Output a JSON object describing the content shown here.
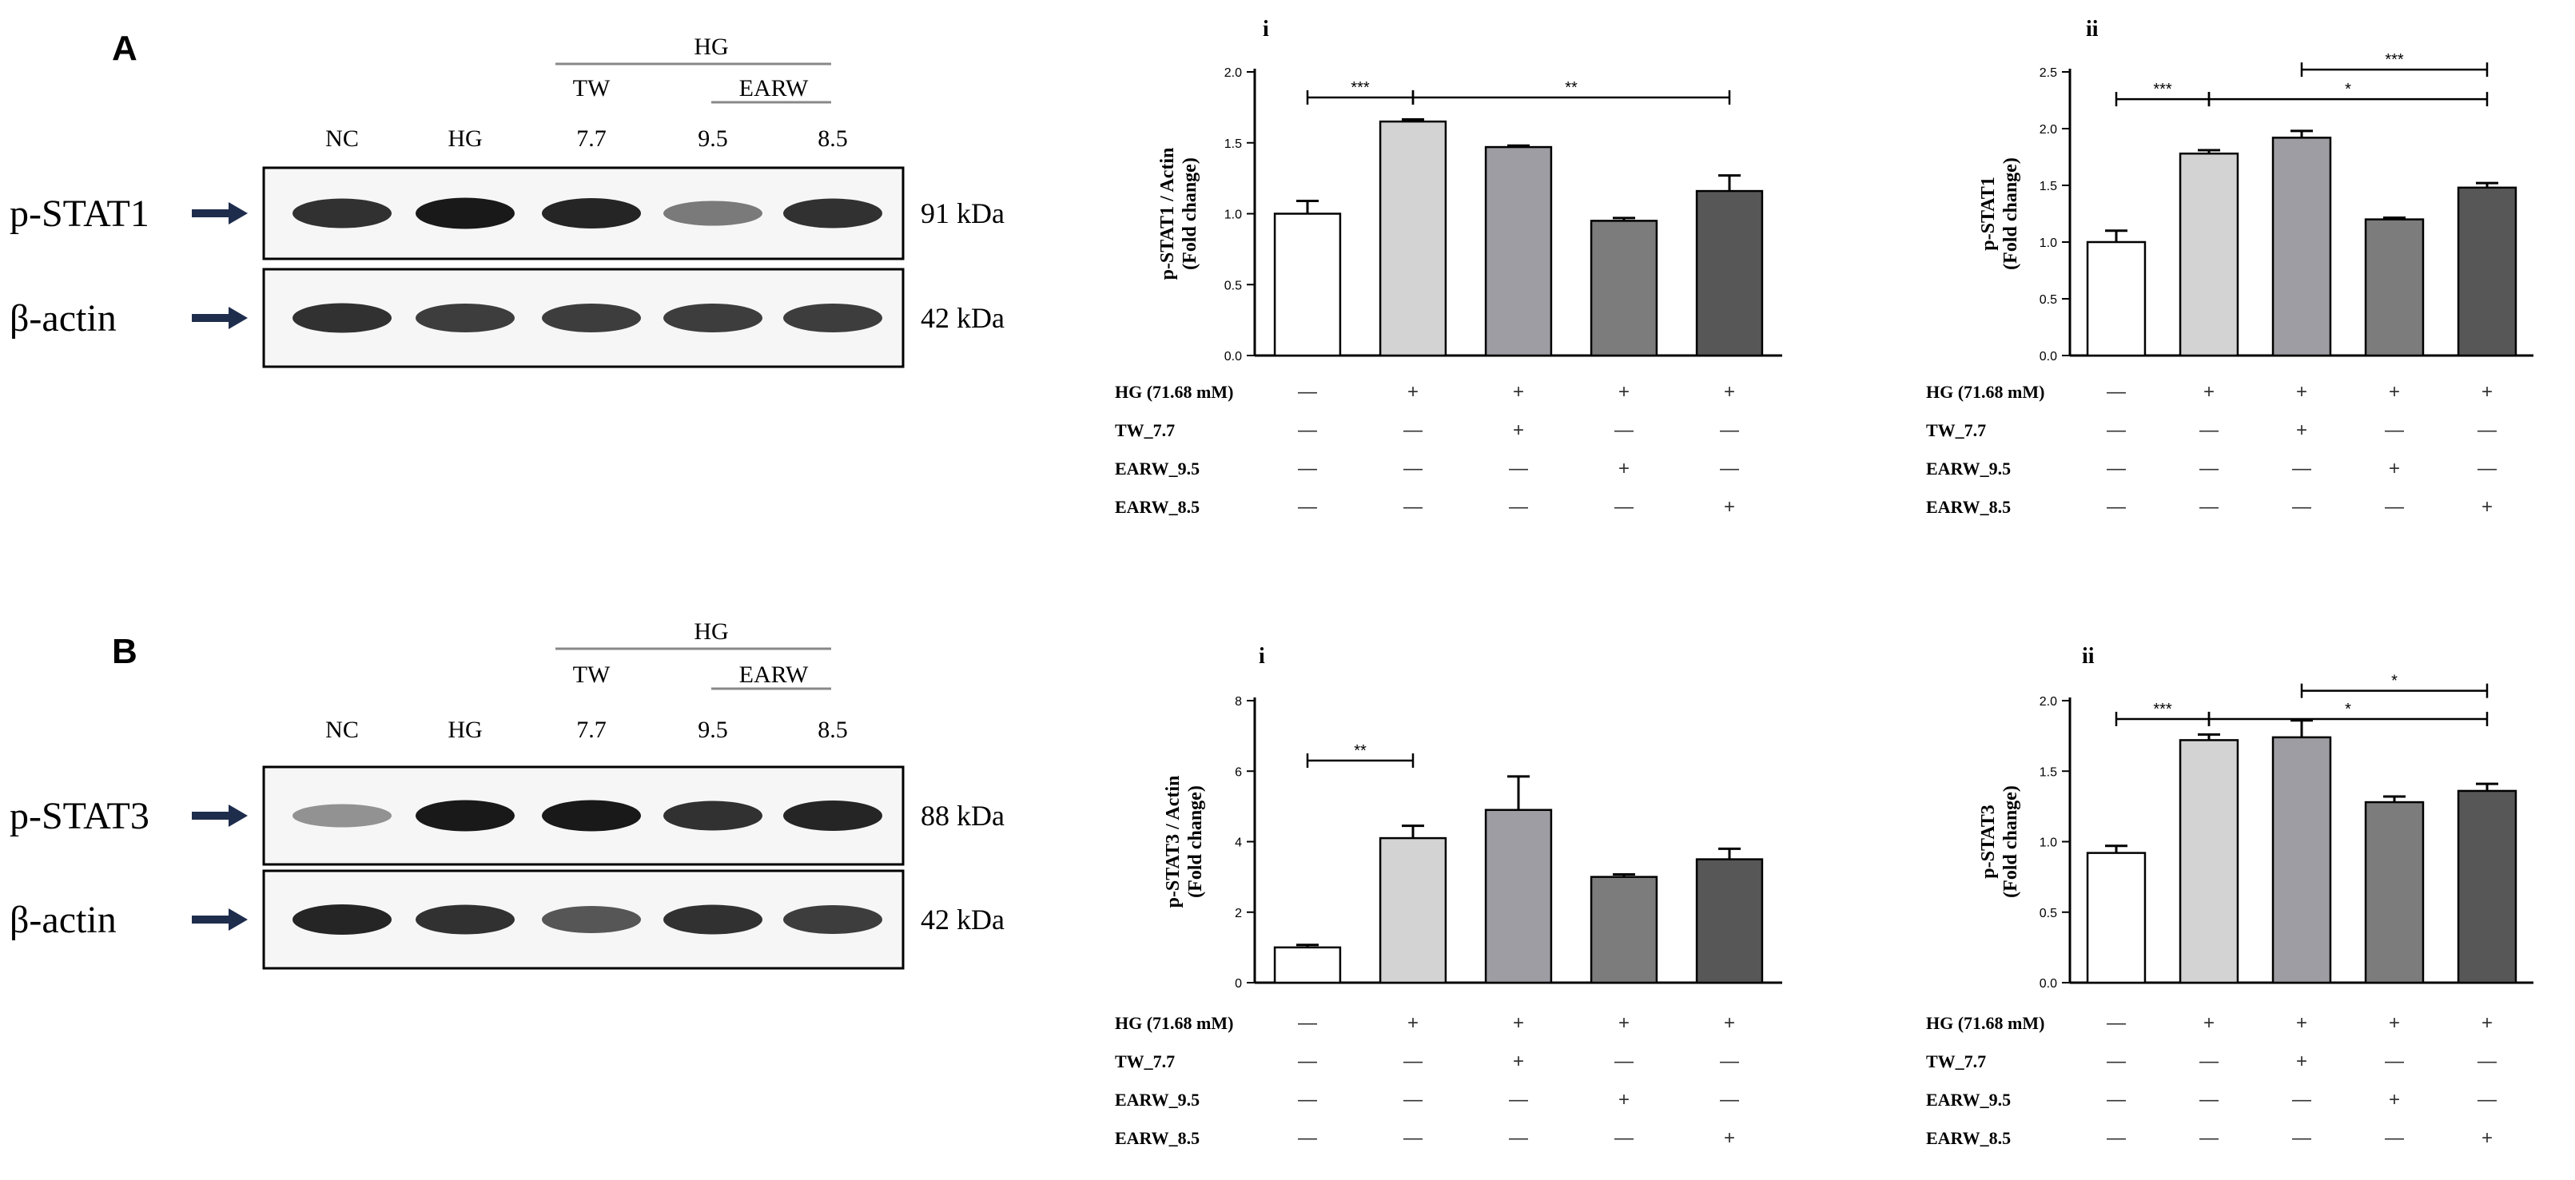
{
  "panels": [
    {
      "letter": "A",
      "blot": {
        "group_label": "HG",
        "subgroup_tw": "TW",
        "subgroup_earw": "EARW",
        "lanes": [
          "NC",
          "HG",
          "7.7",
          "9.5",
          "8.5"
        ],
        "rows": [
          {
            "label": "p-STAT1",
            "mw": "91 kDa",
            "intensity": [
              0.85,
              0.95,
              0.9,
              0.55,
              0.85
            ]
          },
          {
            "label": "β-actin",
            "mw": "42 kDa",
            "intensity": [
              0.85,
              0.8,
              0.8,
              0.8,
              0.8
            ]
          }
        ]
      }
    },
    {
      "letter": "B",
      "blot": {
        "group_label": "HG",
        "subgroup_tw": "TW",
        "subgroup_earw": "EARW",
        "lanes": [
          "NC",
          "HG",
          "7.7",
          "9.5",
          "8.5"
        ],
        "rows": [
          {
            "label": "p-STAT3",
            "mw": "88 kDa",
            "intensity": [
              0.45,
              0.95,
              0.95,
              0.85,
              0.9
            ]
          },
          {
            "label": "β-actin",
            "mw": "42 kDa",
            "intensity": [
              0.9,
              0.85,
              0.7,
              0.85,
              0.8
            ]
          }
        ]
      }
    }
  ],
  "chart_data": [
    {
      "type": "bar",
      "title": "i",
      "ylabel": [
        "p-STAT1 / Actin",
        "(Fold change)"
      ],
      "ylim": [
        0,
        2.0
      ],
      "yticks": [
        "0.0",
        "0.5",
        "1.0",
        "1.5",
        "2.0"
      ],
      "values": [
        1.0,
        1.65,
        1.47,
        0.95,
        1.16
      ],
      "errors": [
        0.09,
        0.015,
        0.01,
        0.02,
        0.11
      ],
      "colors": [
        "#ffffff",
        "#d3d3d3",
        "#9d9da3",
        "#7c7c7c",
        "#575757"
      ],
      "brackets": [
        {
          "from": 0,
          "to": 1,
          "label": "***",
          "y": 1.82
        },
        {
          "from": 1,
          "to": 4,
          "label": "**",
          "y": 1.82
        }
      ],
      "conditions": [
        {
          "label": "HG (71.68 mM)",
          "marks": [
            "—",
            "+",
            "+",
            "+",
            "+"
          ]
        },
        {
          "label": "TW_7.7",
          "marks": [
            "—",
            "—",
            "+",
            "—",
            "—"
          ]
        },
        {
          "label": "EARW_9.5",
          "marks": [
            "—",
            "—",
            "—",
            "+",
            "—"
          ]
        },
        {
          "label": "EARW_8.5",
          "marks": [
            "—",
            "—",
            "—",
            "—",
            "+"
          ]
        }
      ]
    },
    {
      "type": "bar",
      "title": "ii",
      "ylabel": [
        "p-STAT1",
        "(Fold change)"
      ],
      "ylim": [
        0,
        2.5
      ],
      "yticks": [
        "0.0",
        "0.5",
        "1.0",
        "1.5",
        "2.0",
        "2.5"
      ],
      "values": [
        1.0,
        1.78,
        1.92,
        1.2,
        1.48
      ],
      "errors": [
        0.1,
        0.03,
        0.06,
        0.015,
        0.04
      ],
      "colors": [
        "#ffffff",
        "#d3d3d3",
        "#9d9da3",
        "#7c7c7c",
        "#575757"
      ],
      "brackets": [
        {
          "from": 0,
          "to": 1,
          "label": "***",
          "y": 2.26
        },
        {
          "from": 1,
          "to": 4,
          "label": "*",
          "y": 2.26
        },
        {
          "from": 2,
          "to": 4,
          "label": "***",
          "y": 2.52
        }
      ],
      "conditions": [
        {
          "label": "HG (71.68 mM)",
          "marks": [
            "—",
            "+",
            "+",
            "+",
            "+"
          ]
        },
        {
          "label": "TW_7.7",
          "marks": [
            "—",
            "—",
            "+",
            "—",
            "—"
          ]
        },
        {
          "label": "EARW_9.5",
          "marks": [
            "—",
            "—",
            "—",
            "+",
            "—"
          ]
        },
        {
          "label": "EARW_8.5",
          "marks": [
            "—",
            "—",
            "—",
            "—",
            "+"
          ]
        }
      ]
    },
    {
      "type": "bar",
      "title": "i",
      "ylabel": [
        "p-STAT3 / Actin",
        "(Fold change)"
      ],
      "ylim": [
        0,
        8
      ],
      "yticks": [
        "0",
        "2",
        "4",
        "6",
        "8"
      ],
      "values": [
        1.0,
        4.1,
        4.9,
        3.0,
        3.5
      ],
      "errors": [
        0.07,
        0.35,
        0.95,
        0.07,
        0.3
      ],
      "colors": [
        "#ffffff",
        "#d3d3d3",
        "#9d9da3",
        "#7c7c7c",
        "#575757"
      ],
      "brackets": [
        {
          "from": 0,
          "to": 1,
          "label": "**",
          "y": 6.3
        }
      ],
      "conditions": [
        {
          "label": "HG (71.68 mM)",
          "marks": [
            "—",
            "+",
            "+",
            "+",
            "+"
          ]
        },
        {
          "label": "TW_7.7",
          "marks": [
            "—",
            "—",
            "+",
            "—",
            "—"
          ]
        },
        {
          "label": "EARW_9.5",
          "marks": [
            "—",
            "—",
            "—",
            "+",
            "—"
          ]
        },
        {
          "label": "EARW_8.5",
          "marks": [
            "—",
            "—",
            "—",
            "—",
            "+"
          ]
        }
      ]
    },
    {
      "type": "bar",
      "title": "ii",
      "ylabel": [
        "p-STAT3",
        "(Fold change)"
      ],
      "ylim": [
        0,
        2.0
      ],
      "yticks": [
        "0.0",
        "0.5",
        "1.0",
        "1.5",
        "2.0"
      ],
      "values": [
        0.92,
        1.72,
        1.74,
        1.28,
        1.36
      ],
      "errors": [
        0.05,
        0.04,
        0.12,
        0.04,
        0.05
      ],
      "colors": [
        "#ffffff",
        "#d3d3d3",
        "#9d9da3",
        "#7c7c7c",
        "#575757"
      ],
      "brackets": [
        {
          "from": 0,
          "to": 1,
          "label": "***",
          "y": 1.87
        },
        {
          "from": 1,
          "to": 4,
          "label": "*",
          "y": 1.87
        },
        {
          "from": 2,
          "to": 4,
          "label": "*",
          "y": 2.07
        }
      ],
      "conditions": [
        {
          "label": "HG (71.68 mM)",
          "marks": [
            "—",
            "+",
            "+",
            "+",
            "+"
          ]
        },
        {
          "label": "TW_7.7",
          "marks": [
            "—",
            "—",
            "+",
            "—",
            "—"
          ]
        },
        {
          "label": "EARW_9.5",
          "marks": [
            "—",
            "—",
            "—",
            "+",
            "—"
          ]
        },
        {
          "label": "EARW_8.5",
          "marks": [
            "—",
            "—",
            "—",
            "—",
            "+"
          ]
        }
      ]
    }
  ]
}
